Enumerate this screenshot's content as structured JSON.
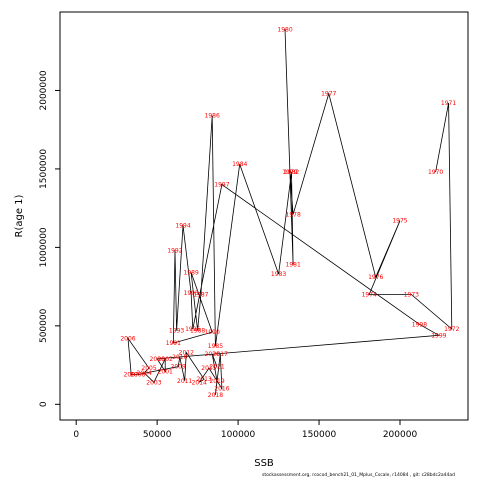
{
  "footer_text": "stockassessment.org, rcocod_bench21_01_Mplus_Cscale, r14084 , git: c28bdc2a44ad",
  "chart_data": {
    "type": "line",
    "xlabel": "SSB",
    "ylabel": "R(age 1)",
    "xlim": [
      -10000,
      242000
    ],
    "ylim": [
      -100000,
      2500000
    ],
    "x_ticks": [
      0,
      50000,
      100000,
      150000,
      200000
    ],
    "x_tick_labels": [
      "0",
      "50000",
      "100000",
      "150000",
      "200000"
    ],
    "y_ticks": [
      0,
      500000,
      1000000,
      1500000,
      2000000
    ],
    "y_tick_labels": [
      "0",
      "500000",
      "1000000",
      "1500000",
      "2000000"
    ],
    "line_color": "#000000",
    "label_color": "#ff0000",
    "points": [
      {
        "year": "1970",
        "x": 222000,
        "y": 1480000
      },
      {
        "year": "1971",
        "x": 230000,
        "y": 1920000
      },
      {
        "year": "1972",
        "x": 232000,
        "y": 480000
      },
      {
        "year": "1973",
        "x": 207000,
        "y": 700000
      },
      {
        "year": "1974",
        "x": 181000,
        "y": 700000
      },
      {
        "year": "1975",
        "x": 200000,
        "y": 1170000
      },
      {
        "year": "1976",
        "x": 185000,
        "y": 810000
      },
      {
        "year": "1977",
        "x": 156000,
        "y": 1980000
      },
      {
        "year": "1978",
        "x": 134000,
        "y": 1210000
      },
      {
        "year": "1979",
        "x": 132000,
        "y": 1480000
      },
      {
        "year": "1980",
        "x": 129000,
        "y": 2390000
      },
      {
        "year": "1981",
        "x": 134000,
        "y": 890000
      },
      {
        "year": "1982",
        "x": 133000,
        "y": 1480000
      },
      {
        "year": "1983",
        "x": 125000,
        "y": 830000
      },
      {
        "year": "1984",
        "x": 101000,
        "y": 1530000
      },
      {
        "year": "1985",
        "x": 86000,
        "y": 370000
      },
      {
        "year": "1986",
        "x": 84000,
        "y": 1840000
      },
      {
        "year": "1987",
        "x": 77000,
        "y": 700000
      },
      {
        "year": "1988",
        "x": 75000,
        "y": 470000
      },
      {
        "year": "1989",
        "x": 71000,
        "y": 840000
      },
      {
        "year": "1990",
        "x": 84000,
        "y": 460000
      },
      {
        "year": "1991",
        "x": 60000,
        "y": 390000
      },
      {
        "year": "1992",
        "x": 61000,
        "y": 980000
      },
      {
        "year": "1993",
        "x": 62000,
        "y": 470000
      },
      {
        "year": "1994",
        "x": 66000,
        "y": 1140000
      },
      {
        "year": "1995",
        "x": 71000,
        "y": 710000
      },
      {
        "year": "1996",
        "x": 72000,
        "y": 480000
      },
      {
        "year": "1997",
        "x": 90000,
        "y": 1400000
      },
      {
        "year": "1998",
        "x": 212000,
        "y": 510000
      },
      {
        "year": "1999",
        "x": 224000,
        "y": 440000
      },
      {
        "year": "2000",
        "x": 50000,
        "y": 290000
      },
      {
        "year": "2001",
        "x": 55000,
        "y": 210000
      },
      {
        "year": "2002",
        "x": 55000,
        "y": 290000
      },
      {
        "year": "2003",
        "x": 48000,
        "y": 140000
      },
      {
        "year": "2004",
        "x": 42000,
        "y": 200000
      },
      {
        "year": "2005",
        "x": 45000,
        "y": 230000
      },
      {
        "year": "2006",
        "x": 32000,
        "y": 420000
      },
      {
        "year": "2007",
        "x": 34000,
        "y": 190000
      },
      {
        "year": "2008",
        "x": 38000,
        "y": 190000
      },
      {
        "year": "2009",
        "x": 63000,
        "y": 240000
      },
      {
        "year": "2010",
        "x": 64000,
        "y": 300000
      },
      {
        "year": "2011",
        "x": 67000,
        "y": 150000
      },
      {
        "year": "2012",
        "x": 68000,
        "y": 330000
      },
      {
        "year": "2013",
        "x": 79000,
        "y": 160000
      },
      {
        "year": "2014",
        "x": 76000,
        "y": 140000
      },
      {
        "year": "2015",
        "x": 82000,
        "y": 230000
      },
      {
        "year": "2016",
        "x": 90000,
        "y": 100000
      },
      {
        "year": "2017",
        "x": 89000,
        "y": 320000
      },
      {
        "year": "2018",
        "x": 86000,
        "y": 60000
      },
      {
        "year": "2019",
        "x": 87000,
        "y": 150000
      },
      {
        "year": "2020",
        "x": 84000,
        "y": 320000
      },
      {
        "year": "2021",
        "x": 87000,
        "y": 240000
      }
    ]
  }
}
